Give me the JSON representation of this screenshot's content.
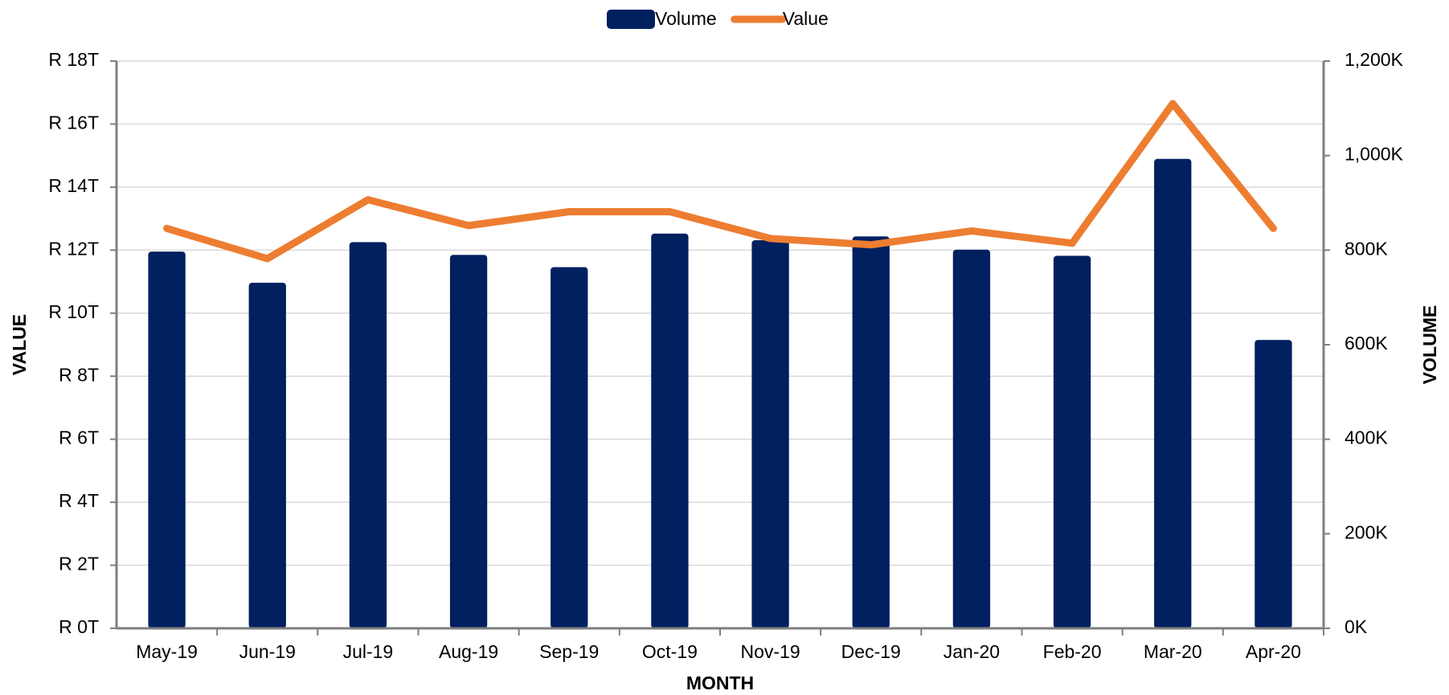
{
  "chart_data": {
    "type": "bar-line",
    "x_label": "MONTH",
    "y_label": "VALUE",
    "y2_label": "VOLUME",
    "categories": [
      "May-19",
      "Jun-19",
      "Jul-19",
      "Aug-19",
      "Sep-19",
      "Oct-19",
      "Nov-19",
      "Dec-19",
      "Jan-20",
      "Feb-20",
      "Mar-20",
      "Apr-20"
    ],
    "series": [
      {
        "name": "Volume",
        "type": "bar",
        "axis": "y2",
        "color": "#002060",
        "values": [
          797,
          731,
          817,
          790,
          764,
          835,
          821,
          829,
          801,
          788,
          993,
          610
        ]
      },
      {
        "name": "Value",
        "type": "line",
        "axis": "y",
        "color": "#ED7D31",
        "values": [
          12.69,
          11.73,
          13.6,
          12.78,
          13.22,
          13.22,
          12.37,
          12.17,
          12.61,
          12.22,
          16.65,
          12.69
        ]
      }
    ],
    "ylim": [
      0,
      18
    ],
    "yticks": [
      {
        "value": 0,
        "label": "R 0T"
      },
      {
        "value": 2,
        "label": "R 2T"
      },
      {
        "value": 4,
        "label": "R 4T"
      },
      {
        "value": 6,
        "label": "R 6T"
      },
      {
        "value": 8,
        "label": "R 8T"
      },
      {
        "value": 10,
        "label": "R 10T"
      },
      {
        "value": 12,
        "label": "R 12T"
      },
      {
        "value": 14,
        "label": "R 14T"
      },
      {
        "value": 16,
        "label": "R 16T"
      },
      {
        "value": 18,
        "label": "R 18T"
      }
    ],
    "y2lim": [
      0,
      1200
    ],
    "y2ticks": [
      {
        "value": 0,
        "label": "0K"
      },
      {
        "value": 200,
        "label": "200K"
      },
      {
        "value": 400,
        "label": "400K"
      },
      {
        "value": 600,
        "label": "600K"
      },
      {
        "value": 800,
        "label": "800K"
      },
      {
        "value": 1000,
        "label": "1,000K"
      },
      {
        "value": 1200,
        "label": "1,200K"
      }
    ],
    "grid": true,
    "legend": "top"
  }
}
